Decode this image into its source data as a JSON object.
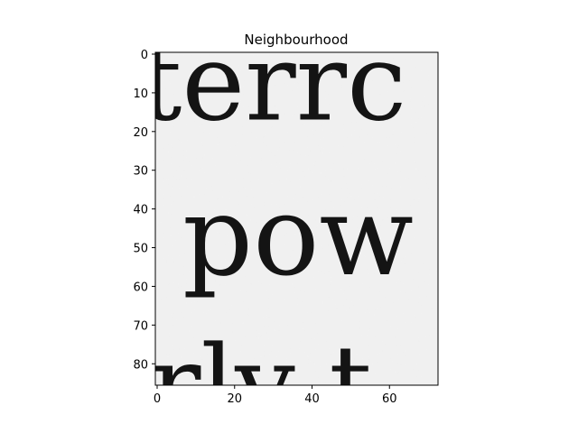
{
  "chart_data": {
    "type": "heatmap",
    "title": "Neighbourhood",
    "xlabel": "",
    "ylabel": "",
    "xlim": [
      0,
      73
    ],
    "ylim": [
      86,
      0
    ],
    "x_ticks": [
      0,
      20,
      40,
      60
    ],
    "y_ticks": [
      0,
      10,
      20,
      30,
      40,
      50,
      60,
      70,
      80
    ],
    "colormap": "gray",
    "grid": false,
    "image_content": {
      "description_of_pixels": "grayscale scan of printed serif text",
      "text_rows": [
        {
          "text": "terrc",
          "row_center": 8
        },
        {
          "text": "pow",
          "row_center": 48
        },
        {
          "text": "rly t",
          "row_center": 86
        }
      ]
    }
  }
}
